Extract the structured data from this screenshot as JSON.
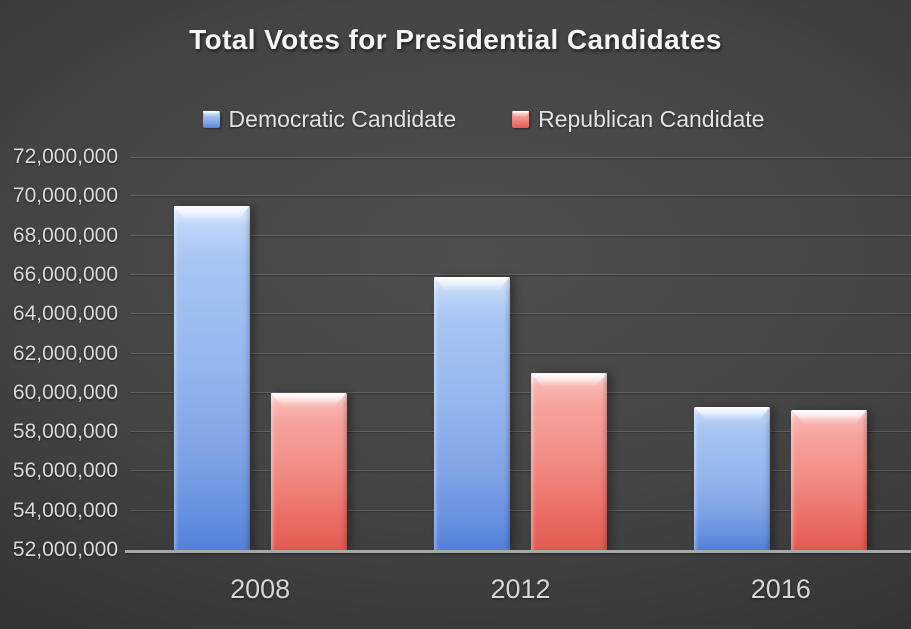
{
  "chart_data": {
    "type": "bar",
    "title": "Total Votes for Presidential Candidates",
    "categories": [
      "2008",
      "2012",
      "2016"
    ],
    "series": [
      {
        "name": "Democratic Candidate",
        "color": "#8fb4ee",
        "values": [
          69500000,
          65900000,
          59300000
        ]
      },
      {
        "name": "Republican Candidate",
        "color": "#ef7d75",
        "values": [
          60000000,
          61000000,
          59150000
        ]
      }
    ],
    "ylim": [
      52000000,
      72000000
    ],
    "y_tick_step": 2000000,
    "y_tick_labels": [
      "52,000,000",
      "54,000,000",
      "56,000,000",
      "58,000,000",
      "60,000,000",
      "62,000,000",
      "64,000,000",
      "66,000,000",
      "68,000,000",
      "70,000,000",
      "72,000,000"
    ],
    "x_tick_labels": [
      "2008",
      "2012",
      "2016"
    ],
    "xlabel": "",
    "ylabel": "",
    "grid": true,
    "legend_position": "top",
    "background_color": "#3f3f3f",
    "text_color": "#dadada"
  }
}
